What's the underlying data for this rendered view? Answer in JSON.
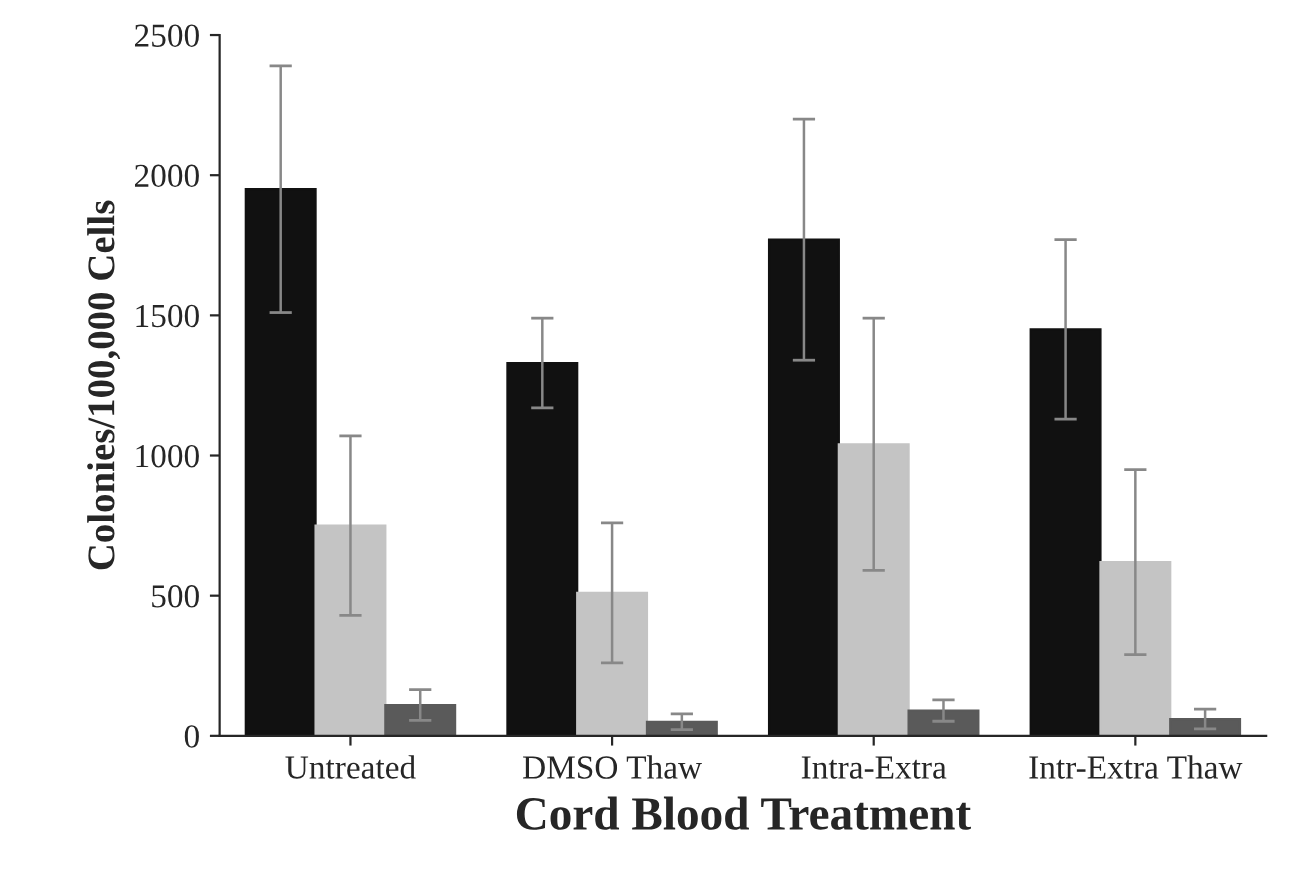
{
  "chart_data": {
    "type": "bar",
    "xlabel": "Cord Blood Treatment",
    "ylabel": "Colonies/100,000 Cells",
    "categories": [
      "Untreated",
      "DMSO Thaw",
      "Intra-Extra",
      "Intr-Extra Thaw"
    ],
    "series": [
      {
        "color": "#111111",
        "values": [
          1950,
          1330,
          1770,
          1450
        ],
        "errors": [
          440,
          160,
          430,
          320
        ]
      },
      {
        "color": "#c4c4c4",
        "values": [
          750,
          510,
          1040,
          620
        ],
        "errors": [
          320,
          250,
          450,
          330
        ]
      },
      {
        "color": "#5a5a5a",
        "values": [
          110,
          50,
          90,
          60
        ],
        "errors": [
          55,
          28,
          38,
          35
        ]
      }
    ],
    "ylim": [
      0,
      2500
    ],
    "yticks": [
      0,
      500,
      1000,
      1500,
      2000,
      2500
    ],
    "grid": false,
    "legend": false
  }
}
